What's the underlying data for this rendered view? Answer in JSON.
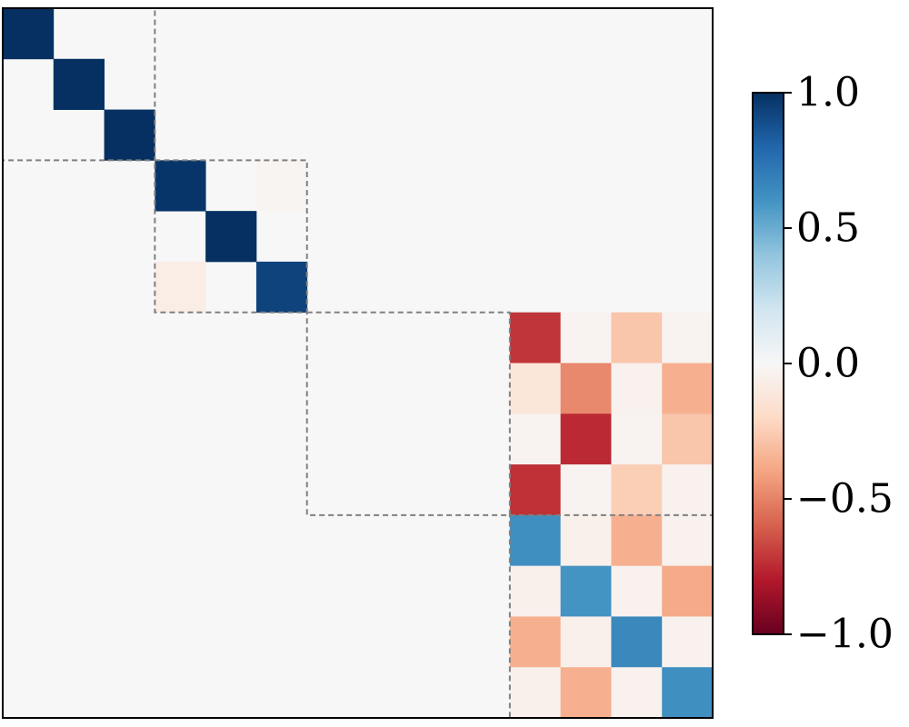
{
  "chart_data": {
    "type": "heatmap",
    "rows": 14,
    "cols": 14,
    "background_value": 0.0,
    "cells": [
      {
        "r": 0,
        "c": 0,
        "v": 1.0
      },
      {
        "r": 1,
        "c": 1,
        "v": 1.0
      },
      {
        "r": 2,
        "c": 2,
        "v": 1.0
      },
      {
        "r": 3,
        "c": 3,
        "v": 0.98
      },
      {
        "r": 3,
        "c": 5,
        "v": -0.02
      },
      {
        "r": 4,
        "c": 4,
        "v": 1.0
      },
      {
        "r": 5,
        "c": 3,
        "v": -0.07
      },
      {
        "r": 5,
        "c": 5,
        "v": 0.93
      },
      {
        "r": 6,
        "c": 10,
        "v": -0.72
      },
      {
        "r": 6,
        "c": 11,
        "v": -0.03
      },
      {
        "r": 6,
        "c": 12,
        "v": -0.28
      },
      {
        "r": 6,
        "c": 13,
        "v": -0.03
      },
      {
        "r": 7,
        "c": 10,
        "v": -0.12
      },
      {
        "r": 7,
        "c": 11,
        "v": -0.48
      },
      {
        "r": 7,
        "c": 12,
        "v": -0.04
      },
      {
        "r": 7,
        "c": 13,
        "v": -0.36
      },
      {
        "r": 8,
        "c": 10,
        "v": -0.03
      },
      {
        "r": 8,
        "c": 11,
        "v": -0.75
      },
      {
        "r": 8,
        "c": 12,
        "v": -0.03
      },
      {
        "r": 8,
        "c": 13,
        "v": -0.28
      },
      {
        "r": 9,
        "c": 10,
        "v": -0.73
      },
      {
        "r": 9,
        "c": 11,
        "v": -0.03
      },
      {
        "r": 9,
        "c": 12,
        "v": -0.25
      },
      {
        "r": 9,
        "c": 13,
        "v": -0.04
      },
      {
        "r": 10,
        "c": 10,
        "v": 0.62
      },
      {
        "r": 10,
        "c": 11,
        "v": -0.05
      },
      {
        "r": 10,
        "c": 12,
        "v": -0.36
      },
      {
        "r": 10,
        "c": 13,
        "v": -0.04
      },
      {
        "r": 11,
        "c": 10,
        "v": -0.05
      },
      {
        "r": 11,
        "c": 11,
        "v": 0.6
      },
      {
        "r": 11,
        "c": 12,
        "v": -0.04
      },
      {
        "r": 11,
        "c": 13,
        "v": -0.38
      },
      {
        "r": 12,
        "c": 10,
        "v": -0.36
      },
      {
        "r": 12,
        "c": 11,
        "v": -0.05
      },
      {
        "r": 12,
        "c": 12,
        "v": 0.65
      },
      {
        "r": 12,
        "c": 13,
        "v": -0.04
      },
      {
        "r": 13,
        "c": 10,
        "v": -0.05
      },
      {
        "r": 13,
        "c": 11,
        "v": -0.36
      },
      {
        "r": 13,
        "c": 12,
        "v": -0.04
      },
      {
        "r": 13,
        "c": 13,
        "v": 0.62
      }
    ],
    "blocks": [
      {
        "start": 0,
        "end": 3
      },
      {
        "start": 3,
        "end": 6
      },
      {
        "start": 6,
        "end": 10
      },
      {
        "start": 10,
        "end": 14
      }
    ],
    "colorbar": {
      "colormap": "RdBu",
      "vmin": -1.0,
      "vmax": 1.0,
      "ticks": [
        1.0,
        0.5,
        0.0,
        -0.5,
        -1.0
      ],
      "tick_labels": [
        "1.0",
        "0.5",
        "0.0",
        "−0.5",
        "−1.0"
      ]
    }
  }
}
